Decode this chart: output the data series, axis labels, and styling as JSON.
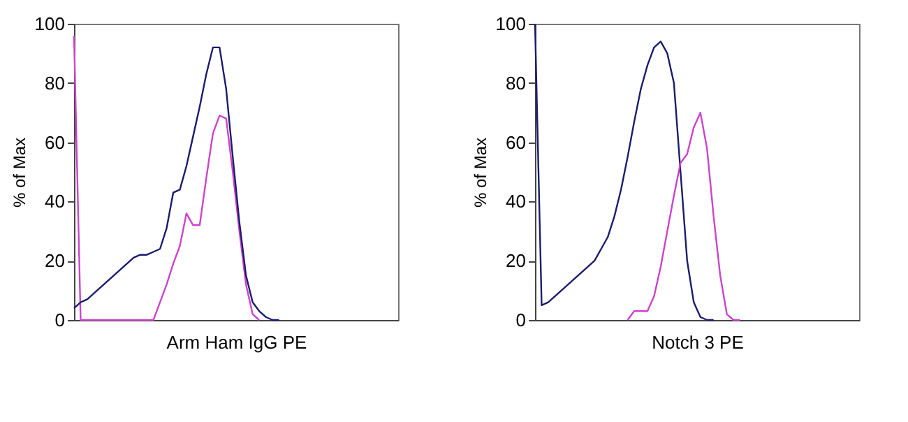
{
  "chart_data": [
    {
      "type": "line",
      "xlabel": "Arm Ham IgG PE",
      "ylabel": "% of Max",
      "ylim": [
        0,
        100
      ],
      "yticks": [
        0,
        20,
        40,
        60,
        80,
        100
      ],
      "grid": false,
      "tick_labels": "y",
      "categories": [
        null,
        null,
        null,
        null,
        null,
        null,
        null,
        null,
        null,
        null,
        null,
        null,
        null,
        null,
        null,
        null,
        null,
        null,
        null,
        null,
        null,
        null,
        null,
        null,
        null,
        null,
        null,
        null,
        null,
        null,
        null,
        null,
        null,
        null,
        null,
        null,
        null,
        null,
        null,
        null,
        null,
        null,
        null,
        null,
        null,
        null,
        null,
        null,
        null,
        null
      ],
      "series": [
        {
          "color": "#cc44cc",
          "values": [
            96,
            0,
            0,
            0,
            0,
            0,
            0,
            0,
            0,
            0,
            0,
            0,
            0,
            6,
            12,
            19,
            25,
            36,
            32,
            32,
            48,
            63,
            69,
            68,
            50,
            30,
            12,
            2,
            0,
            null,
            null,
            null,
            null,
            null,
            null,
            null,
            null,
            null,
            null,
            null,
            null,
            null,
            null,
            null,
            null,
            null,
            null,
            null,
            null,
            null
          ]
        },
        {
          "color": "#1c1c6e",
          "values": [
            4,
            6,
            7,
            9,
            11,
            13,
            15,
            17,
            19,
            21,
            22,
            22,
            23,
            24,
            31,
            43,
            44,
            52,
            62,
            72,
            83,
            92,
            92,
            78,
            55,
            33,
            15,
            6,
            3,
            1,
            0,
            0,
            null,
            null,
            null,
            null,
            null,
            null,
            null,
            null,
            null,
            null,
            null,
            null,
            null,
            null,
            null,
            null,
            null,
            null
          ]
        }
      ]
    },
    {
      "type": "line",
      "xlabel": "Notch 3 PE",
      "ylabel": "% of Max",
      "ylim": [
        0,
        100
      ],
      "yticks": [
        0,
        20,
        40,
        60,
        80,
        100
      ],
      "grid": false,
      "tick_labels": "y",
      "categories": [
        null,
        null,
        null,
        null,
        null,
        null,
        null,
        null,
        null,
        null,
        null,
        null,
        null,
        null,
        null,
        null,
        null,
        null,
        null,
        null,
        null,
        null,
        null,
        null,
        null,
        null,
        null,
        null,
        null,
        null,
        null,
        null,
        null,
        null,
        null,
        null,
        null,
        null,
        null,
        null,
        null,
        null,
        null,
        null,
        null,
        null,
        null,
        null,
        null,
        null
      ],
      "series": [
        {
          "color": "#1c1c6e",
          "values": [
            100,
            5,
            6,
            8,
            10,
            12,
            14,
            16,
            18,
            20,
            24,
            28,
            35,
            44,
            55,
            67,
            78,
            86,
            92,
            94,
            90,
            80,
            50,
            20,
            6,
            1,
            0,
            0,
            null,
            null,
            null,
            null,
            null,
            null,
            null,
            null,
            null,
            null,
            null,
            null,
            null,
            null,
            null,
            null,
            null,
            null,
            null,
            null,
            null,
            null
          ]
        },
        {
          "color": "#cc44cc",
          "values": [
            null,
            null,
            null,
            null,
            null,
            null,
            null,
            null,
            null,
            null,
            null,
            null,
            null,
            null,
            0,
            3,
            3,
            3,
            8,
            18,
            30,
            42,
            53,
            56,
            65,
            70,
            58,
            35,
            15,
            2,
            0,
            0,
            null,
            null,
            null,
            null,
            null,
            null,
            null,
            null,
            null,
            null,
            null,
            null,
            null,
            null,
            null,
            null,
            null,
            null
          ]
        }
      ]
    }
  ]
}
